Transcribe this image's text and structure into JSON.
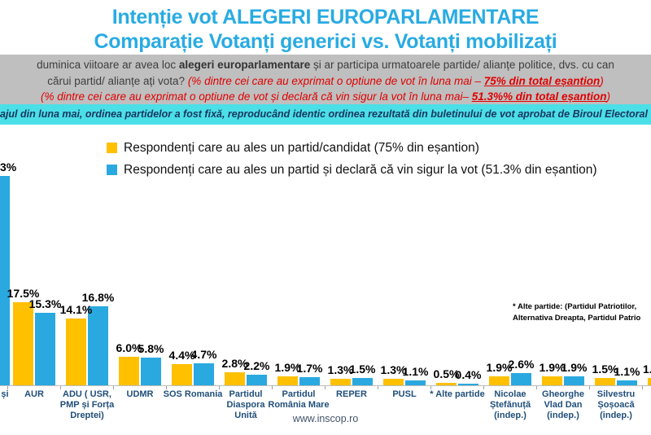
{
  "title": {
    "line1": "Intenție vot ALEGERI EUROPARLAMENTARE",
    "line2": "Comparație Votanți generici vs. Votanți mobilizați"
  },
  "question_box": {
    "line1_prefix": "duminica viitoare ar avea loc ",
    "line1_bold": "alegeri europarlamentare",
    "line1_suffix": " și ar participa urmatoarele partide/ alianțe politice, dvs. cu can",
    "line2_prefix": "cărui partid/ alianțe ați vota? ",
    "line2_red": "(% dintre cei care au exprimat o optiune de vot în luna mai – ",
    "line2_red_bold": "75% din total eșantion",
    "line2_close": ")",
    "line3_red": "(% dintre cei care au exprimat o optiune de vot și declară că vin sigur la vot în luna mai– ",
    "line3_red_bold": "51.3%% din total eșantion",
    "line3_close": ")"
  },
  "method_strip": {
    "text": "ajul din luna mai, ordinea partidelor a fost fixă, reproducând identic ordinea rezultată din buletinului de vot aprobat de Biroul Electoral C"
  },
  "legend": [
    {
      "label": "Respondenți care au ales un partid/candidat (75% din eșantion)",
      "color": "#FFC000"
    },
    {
      "label": "Respondenți care au ales un partid și declară că vin sigur la vot (51.3% din eșantion)",
      "color": "#29A9E0"
    }
  ],
  "note": {
    "line1": "* Alte partide: (Partidul Patriotilor,",
    "line2": "Alternativa Dreapta, Partidul Patrio"
  },
  "footer": {
    "website": "www.inscop.ro"
  },
  "colors": {
    "title_blue": "#29ABE2",
    "bar_yellow": "#FFC000",
    "bar_blue": "#29A9E0",
    "strip_bg": "#4BDFE8",
    "question_box_bg": "#BFBFBF",
    "red_text": "#E00000",
    "xlabel_blue": "#1F4E79"
  },
  "chart_data": {
    "type": "bar",
    "unit": "%",
    "grid": false,
    "legend_position": "top",
    "series": [
      {
        "name": "Respondenți care au ales un partid/candidat (75% din eșantion)",
        "color": "#FFC000",
        "key": "yellow"
      },
      {
        "name": "Respondenți care au ales un partid și declară că vin sigur la vot (51.3% din eșantion)",
        "color": "#29A9E0",
        "key": "blue"
      }
    ],
    "groups": [
      {
        "category": "și",
        "truncated_left": true,
        "label_lines": [
          "și"
        ],
        "yellow": null,
        "yellow_label": "",
        "blue": 44.3,
        "blue_label": "3%"
      },
      {
        "category": "AUR",
        "label_lines": [
          "AUR"
        ],
        "yellow": 17.5,
        "yellow_label": "17.5%",
        "blue": 15.3,
        "blue_label": "15.3%"
      },
      {
        "category": "ADU ( USR, PMP și Forța Dreptei)",
        "label_lines": [
          "ADU ( USR,",
          "PMP și Forța",
          "Dreptei)"
        ],
        "yellow": 14.1,
        "yellow_label": "14.1%",
        "blue": 16.8,
        "blue_label": "16.8%"
      },
      {
        "category": "UDMR",
        "label_lines": [
          "UDMR"
        ],
        "yellow": 6.0,
        "yellow_label": "6.0%",
        "blue": 5.8,
        "blue_label": "5.8%"
      },
      {
        "category": "SOS Romania",
        "label_lines": [
          "SOS Romania"
        ],
        "yellow": 4.4,
        "yellow_label": "4.4%",
        "blue": 4.7,
        "blue_label": "4.7%"
      },
      {
        "category": "Partidul Diaspora Unită",
        "label_lines": [
          "Partidul",
          "Diaspora",
          "Unită"
        ],
        "yellow": 2.8,
        "yellow_label": "2.8%",
        "blue": 2.2,
        "blue_label": "2.2%"
      },
      {
        "category": "Partidul România Mare",
        "label_lines": [
          "Partidul",
          "România Mare"
        ],
        "yellow": 1.9,
        "yellow_label": "1.9%",
        "blue": 1.7,
        "blue_label": "1.7%"
      },
      {
        "category": "REPER",
        "label_lines": [
          "REPER"
        ],
        "yellow": 1.3,
        "yellow_label": "1.3%",
        "blue": 1.5,
        "blue_label": "1.5%"
      },
      {
        "category": "PUSL",
        "label_lines": [
          "PUSL"
        ],
        "yellow": 1.3,
        "yellow_label": "1.3%",
        "blue": 1.1,
        "blue_label": "1.1%"
      },
      {
        "category": "* Alte partide",
        "label_lines": [
          "* Alte partide"
        ],
        "yellow": 0.5,
        "yellow_label": "0.5%",
        "blue": 0.4,
        "blue_label": "0.4%"
      },
      {
        "category": "Nicolae Ștefănuță (indep.)",
        "label_lines": [
          "Nicolae",
          "Ștefănuță",
          "(indep.)"
        ],
        "yellow": 1.9,
        "yellow_label": "1.9%",
        "blue": 2.6,
        "blue_label": "2.6%"
      },
      {
        "category": "Gheorghe Vlad Dan (indep.)",
        "label_lines": [
          "Gheorghe",
          "Vlad Dan",
          "(indep.)"
        ],
        "yellow": 1.9,
        "yellow_label": "1.9%",
        "blue": 1.9,
        "blue_label": "1.9%"
      },
      {
        "category": "Silvestru Șoșoacă (indep.)",
        "label_lines": [
          "Silvestru",
          "Șoșoacă",
          "(indep.)"
        ],
        "yellow": 1.5,
        "yellow_label": "1.5%",
        "blue": 1.1,
        "blue_label": "1.1%"
      },
      {
        "category": "",
        "truncated_right": true,
        "label_lines": [],
        "yellow": 1.6,
        "yellow_label": "1.",
        "blue": null,
        "blue_label": ""
      }
    ]
  }
}
